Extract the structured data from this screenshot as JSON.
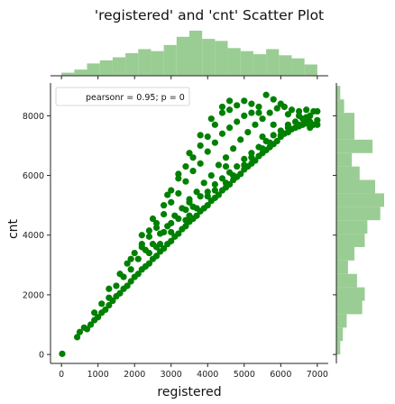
{
  "chart_data": {
    "type": "scatter",
    "title": "'registered' and 'cnt' Scatter Plot",
    "xlabel": "registered",
    "ylabel": "cnt",
    "xlim": [
      -300,
      7300
    ],
    "ylim": [
      -300,
      9100
    ],
    "xticks": [
      0,
      1000,
      2000,
      3000,
      4000,
      5000,
      6000,
      7000
    ],
    "yticks": [
      0,
      2000,
      4000,
      6000,
      8000
    ],
    "grid": false,
    "point_color": "#008000",
    "hist_color": "#9acd94",
    "legend": {
      "position": "top-left",
      "text": "pearsonr = 0.95; p = 0"
    },
    "points": [
      [
        20,
        22
      ],
      [
        430,
        580
      ],
      [
        500,
        750
      ],
      [
        620,
        900
      ],
      [
        700,
        850
      ],
      [
        800,
        1000
      ],
      [
        900,
        1150
      ],
      [
        1000,
        1250
      ],
      [
        1100,
        1400
      ],
      [
        1200,
        1500
      ],
      [
        1300,
        1650
      ],
      [
        1400,
        1800
      ],
      [
        1500,
        1950
      ],
      [
        1600,
        2050
      ],
      [
        1700,
        2200
      ],
      [
        1800,
        2300
      ],
      [
        1900,
        2450
      ],
      [
        2000,
        2600
      ],
      [
        2100,
        2700
      ],
      [
        2200,
        2850
      ],
      [
        2300,
        2950
      ],
      [
        2400,
        3050
      ],
      [
        2500,
        3200
      ],
      [
        2600,
        3300
      ],
      [
        2700,
        3450
      ],
      [
        2800,
        3550
      ],
      [
        2900,
        3700
      ],
      [
        3000,
        3800
      ],
      [
        3100,
        3950
      ],
      [
        3200,
        4050
      ],
      [
        3300,
        4200
      ],
      [
        3400,
        4300
      ],
      [
        3500,
        4450
      ],
      [
        3600,
        4550
      ],
      [
        3700,
        4650
      ],
      [
        3800,
        4800
      ],
      [
        3900,
        4900
      ],
      [
        4000,
        5000
      ],
      [
        4100,
        5150
      ],
      [
        4200,
        5250
      ],
      [
        4300,
        5350
      ],
      [
        4400,
        5500
      ],
      [
        4500,
        5600
      ],
      [
        4600,
        5700
      ],
      [
        4700,
        5850
      ],
      [
        4800,
        5950
      ],
      [
        4900,
        6050
      ],
      [
        5000,
        6200
      ],
      [
        5100,
        6300
      ],
      [
        5200,
        6400
      ],
      [
        5300,
        6500
      ],
      [
        5400,
        6650
      ],
      [
        5500,
        6750
      ],
      [
        5600,
        6850
      ],
      [
        5700,
        6950
      ],
      [
        5800,
        7050
      ],
      [
        5900,
        7150
      ],
      [
        6000,
        7300
      ],
      [
        6100,
        7400
      ],
      [
        6200,
        7450
      ],
      [
        6300,
        7550
      ],
      [
        6400,
        7600
      ],
      [
        6500,
        7650
      ],
      [
        6600,
        7700
      ],
      [
        6700,
        7750
      ],
      [
        6800,
        7800
      ],
      [
        6900,
        7700
      ],
      [
        7000,
        7850
      ],
      [
        900,
        1400
      ],
      [
        1100,
        1700
      ],
      [
        1300,
        1900
      ],
      [
        1500,
        2300
      ],
      [
        1700,
        2600
      ],
      [
        1900,
        2850
      ],
      [
        2100,
        3200
      ],
      [
        2300,
        3500
      ],
      [
        2500,
        3700
      ],
      [
        2700,
        4050
      ],
      [
        2900,
        4300
      ],
      [
        3100,
        4650
      ],
      [
        3300,
        4900
      ],
      [
        3500,
        5200
      ],
      [
        3700,
        5450
      ],
      [
        3900,
        5750
      ],
      [
        4100,
        6000
      ],
      [
        4300,
        6350
      ],
      [
        4500,
        6600
      ],
      [
        4700,
        6900
      ],
      [
        4900,
        7200
      ],
      [
        5100,
        7450
      ],
      [
        5300,
        7700
      ],
      [
        5500,
        7900
      ],
      [
        5700,
        8100
      ],
      [
        5900,
        8250
      ],
      [
        6100,
        8300
      ],
      [
        6300,
        8200
      ],
      [
        6500,
        8150
      ],
      [
        6700,
        8200
      ],
      [
        6900,
        8150
      ],
      [
        1800,
        3050
      ],
      [
        2000,
        3400
      ],
      [
        2200,
        3700
      ],
      [
        2400,
        4150
      ],
      [
        2600,
        4400
      ],
      [
        2800,
        4700
      ],
      [
        3000,
        5100
      ],
      [
        3200,
        5400
      ],
      [
        3400,
        5800
      ],
      [
        3600,
        6150
      ],
      [
        3800,
        6400
      ],
      [
        4000,
        6800
      ],
      [
        4200,
        7100
      ],
      [
        4400,
        7400
      ],
      [
        4600,
        7600
      ],
      [
        4800,
        7800
      ],
      [
        5000,
        8000
      ],
      [
        5200,
        8100
      ],
      [
        5400,
        8300
      ],
      [
        5600,
        8700
      ],
      [
        5800,
        8550
      ],
      [
        6000,
        8400
      ],
      [
        2200,
        4000
      ],
      [
        2500,
        4550
      ],
      [
        2800,
        5000
      ],
      [
        3000,
        5500
      ],
      [
        3200,
        5900
      ],
      [
        3400,
        6300
      ],
      [
        3600,
        6600
      ],
      [
        3800,
        7000
      ],
      [
        4000,
        7300
      ],
      [
        4200,
        7700
      ],
      [
        4400,
        8100
      ],
      [
        4600,
        8200
      ],
      [
        4800,
        8350
      ],
      [
        5000,
        8500
      ],
      [
        5200,
        8400
      ],
      [
        5400,
        8100
      ],
      [
        2900,
        5350
      ],
      [
        3200,
        6050
      ],
      [
        3500,
        6750
      ],
      [
        3800,
        7350
      ],
      [
        4100,
        7900
      ],
      [
        4400,
        8300
      ],
      [
        4600,
        8500
      ],
      [
        1300,
        2200
      ],
      [
        1600,
        2700
      ],
      [
        1900,
        3200
      ],
      [
        2200,
        3600
      ],
      [
        2400,
        3950
      ],
      [
        2600,
        4250
      ],
      [
        2700,
        3700
      ],
      [
        2800,
        4100
      ],
      [
        3000,
        4400
      ],
      [
        3200,
        4550
      ],
      [
        3400,
        4850
      ],
      [
        3600,
        4950
      ],
      [
        3800,
        5300
      ],
      [
        4000,
        5450
      ],
      [
        4200,
        5700
      ],
      [
        4400,
        5900
      ],
      [
        4600,
        6100
      ],
      [
        4800,
        6300
      ],
      [
        5000,
        6550
      ],
      [
        5200,
        6750
      ],
      [
        5400,
        6950
      ],
      [
        5600,
        7150
      ],
      [
        5800,
        7350
      ],
      [
        6000,
        7500
      ],
      [
        6200,
        7700
      ],
      [
        6400,
        7800
      ],
      [
        6600,
        7900
      ],
      [
        6800,
        8000
      ],
      [
        7000,
        8150
      ],
      [
        2400,
        3400
      ],
      [
        2600,
        3600
      ],
      [
        3000,
        4100
      ],
      [
        3500,
        4650
      ],
      [
        4000,
        5300
      ],
      [
        4500,
        5750
      ],
      [
        5000,
        6350
      ],
      [
        5500,
        6900
      ],
      [
        6000,
        7350
      ],
      [
        6500,
        7700
      ],
      [
        7000,
        7700
      ],
      [
        3500,
        5100
      ],
      [
        4500,
        6300
      ],
      [
        5500,
        7300
      ],
      [
        6500,
        8000
      ],
      [
        5800,
        7700
      ],
      [
        6200,
        8050
      ],
      [
        6700,
        7950
      ],
      [
        3400,
        4500
      ],
      [
        3700,
        4900
      ],
      [
        4200,
        5500
      ],
      [
        4700,
        6000
      ],
      [
        5200,
        6600
      ],
      [
        5700,
        7100
      ],
      [
        6200,
        7600
      ],
      [
        6800,
        7600
      ]
    ],
    "top_hist": {
      "bin_edges": [
        0,
        350,
        700,
        1050,
        1400,
        1750,
        2100,
        2450,
        2800,
        3150,
        3500,
        3850,
        4200,
        4550,
        4900,
        5250,
        5600,
        5950,
        6300,
        6650,
        7000
      ],
      "counts": [
        3,
        6,
        12,
        15,
        18,
        22,
        26,
        24,
        30,
        38,
        44,
        36,
        34,
        27,
        24,
        21,
        26,
        20,
        17,
        11
      ]
    },
    "right_hist": {
      "bin_edges": [
        0,
        450,
        900,
        1350,
        1800,
        2250,
        2700,
        3150,
        3600,
        4050,
        4500,
        4950,
        5400,
        5850,
        6300,
        6750,
        7200,
        7650,
        8100,
        8550,
        9000
      ],
      "counts": [
        3,
        5,
        8,
        20,
        22,
        16,
        9,
        14,
        22,
        24,
        34,
        37,
        30,
        18,
        12,
        28,
        14,
        14,
        6,
        3
      ]
    }
  }
}
